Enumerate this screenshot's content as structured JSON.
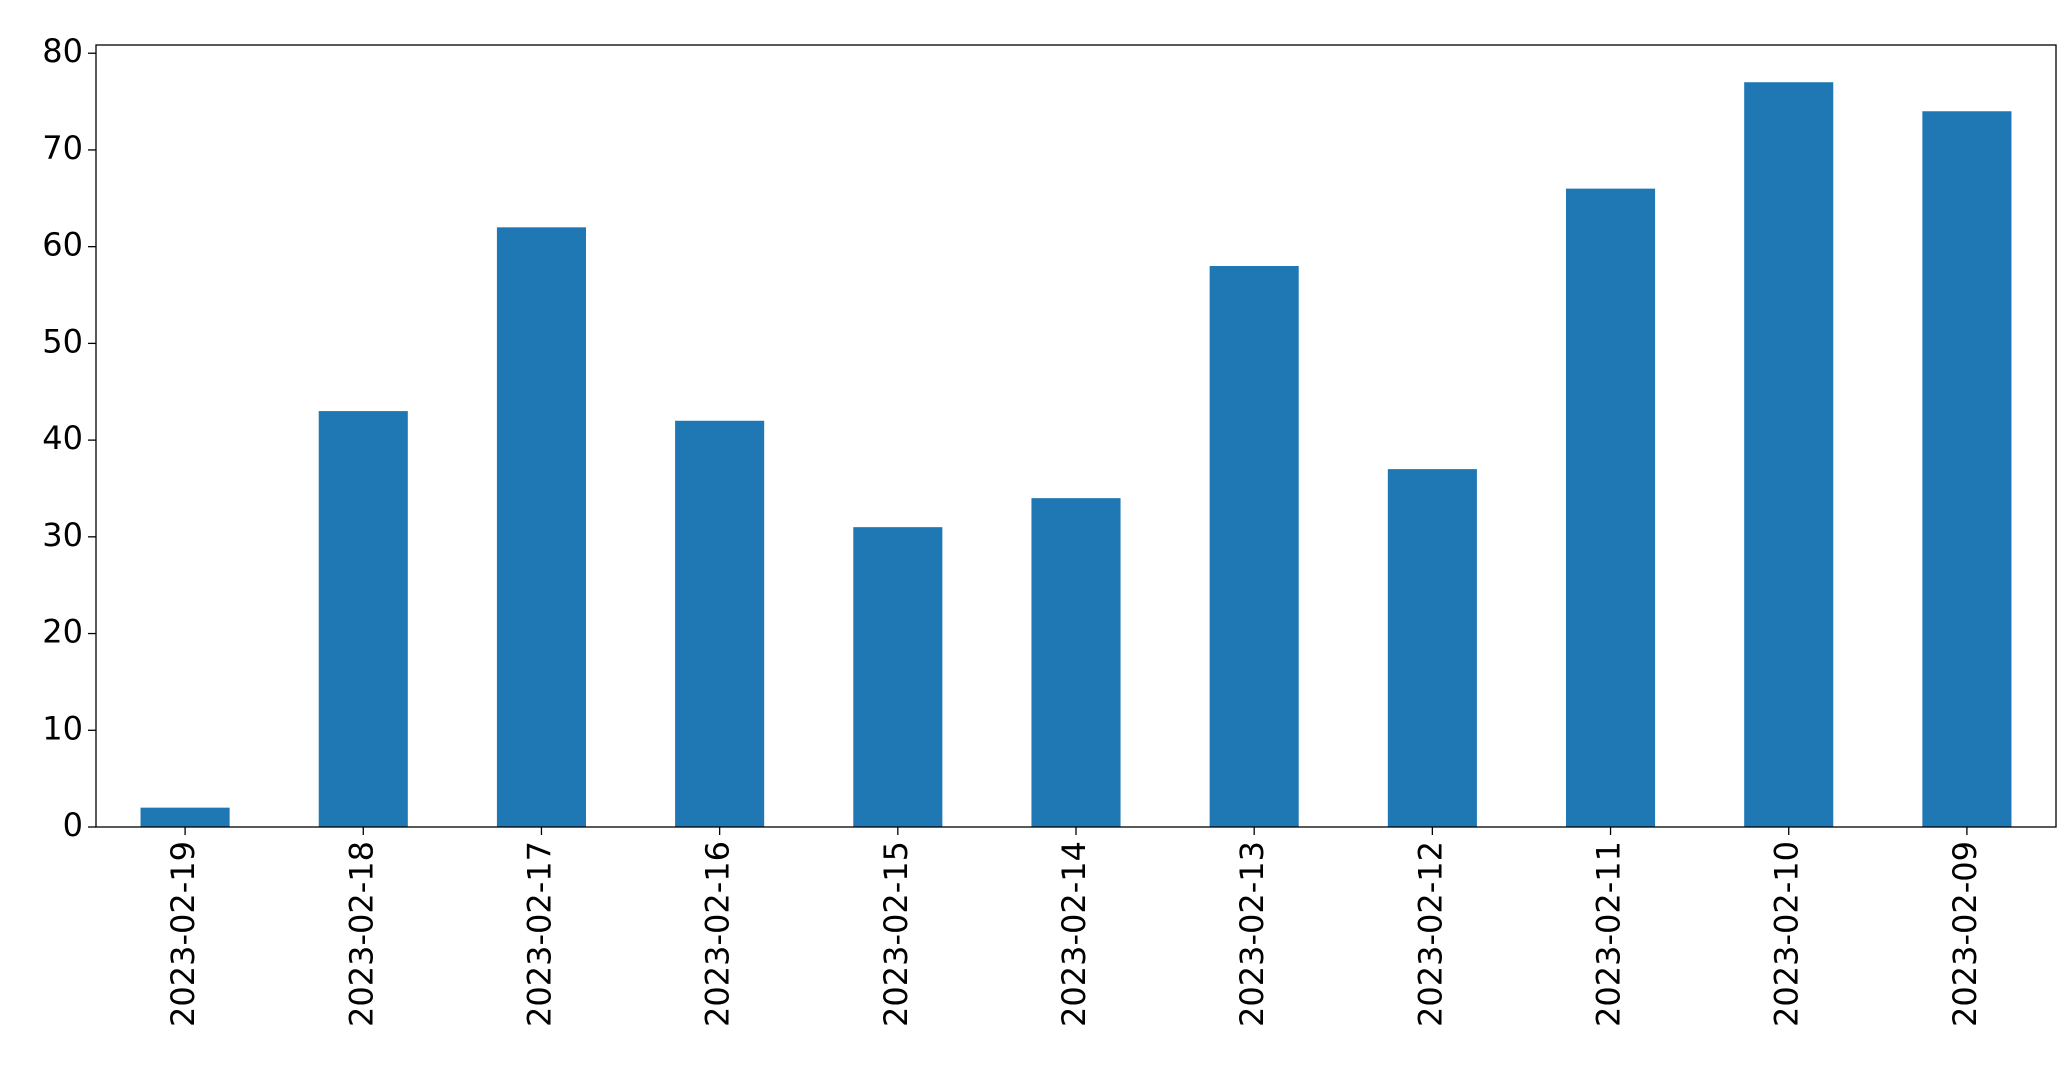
{
  "chart_data": {
    "type": "bar",
    "categories": [
      "2023-02-19",
      "2023-02-18",
      "2023-02-17",
      "2023-02-16",
      "2023-02-15",
      "2023-02-14",
      "2023-02-13",
      "2023-02-12",
      "2023-02-11",
      "2023-02-10",
      "2023-02-09"
    ],
    "values": [
      2,
      43,
      62,
      42,
      31,
      34,
      58,
      37,
      66,
      77,
      74
    ],
    "color": "#1f77b4",
    "ylim": [
      0,
      80.85
    ],
    "yticks": [
      0,
      10,
      20,
      30,
      40,
      50,
      60,
      70,
      80
    ],
    "grid": false
  }
}
